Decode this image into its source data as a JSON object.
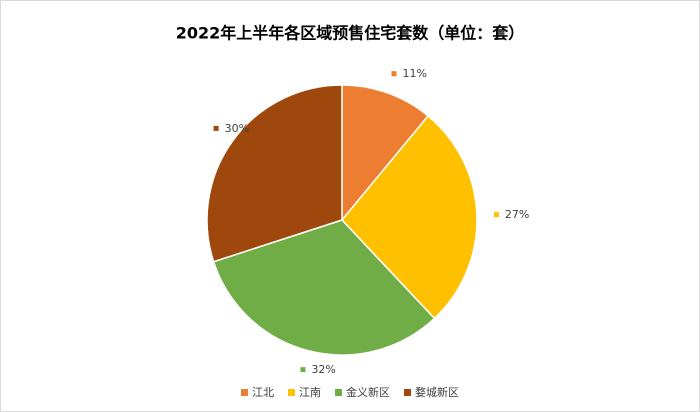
{
  "chart_data": {
    "type": "pie",
    "title": "2022年上半年各区域预售住宅套数（单位：套）",
    "categories": [
      "江北",
      "江南",
      "金义新区",
      "婺城新区"
    ],
    "values": [
      11,
      27,
      32,
      30
    ],
    "value_labels": [
      "11%",
      "27%",
      "32%",
      "30%"
    ],
    "colors": [
      "#ed7d31",
      "#ffc000",
      "#70ad47",
      "#9e480e"
    ],
    "legend": "bottom"
  }
}
